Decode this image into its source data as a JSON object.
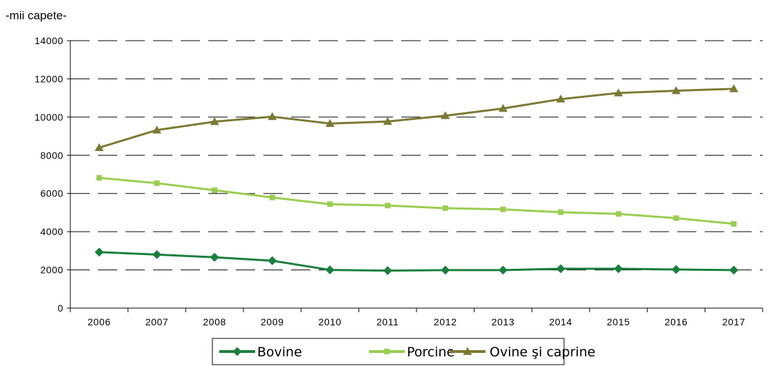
{
  "chart_data": {
    "type": "line",
    "unit_label": "-mii capete-",
    "title": "",
    "xlabel": "",
    "ylabel": "",
    "categories": [
      "2006",
      "2007",
      "2008",
      "2009",
      "2010",
      "2011",
      "2012",
      "2013",
      "2014",
      "2015",
      "2016",
      "2017"
    ],
    "ylim": [
      0,
      14000
    ],
    "yticks": [
      0,
      2000,
      4000,
      6000,
      8000,
      10000,
      12000,
      14000
    ],
    "grid": true,
    "legend_position": "bottom",
    "series": [
      {
        "name": "Bovine",
        "color": "#1a7f3c",
        "marker": "diamond",
        "values": [
          2930,
          2800,
          2660,
          2480,
          2000,
          1960,
          1990,
          1990,
          2060,
          2060,
          2020,
          1990
        ]
      },
      {
        "name": "Porcine",
        "color": "#9acd4f",
        "marker": "square",
        "values": [
          6820,
          6540,
          6170,
          5790,
          5440,
          5370,
          5230,
          5170,
          5020,
          4930,
          4710,
          4410
        ]
      },
      {
        "name": "Ovine şi caprine",
        "color": "#7b7a32",
        "marker": "triangle",
        "values": [
          8400,
          9320,
          9760,
          10020,
          9660,
          9770,
          10070,
          10450,
          10940,
          11260,
          11380,
          11480
        ]
      }
    ]
  }
}
